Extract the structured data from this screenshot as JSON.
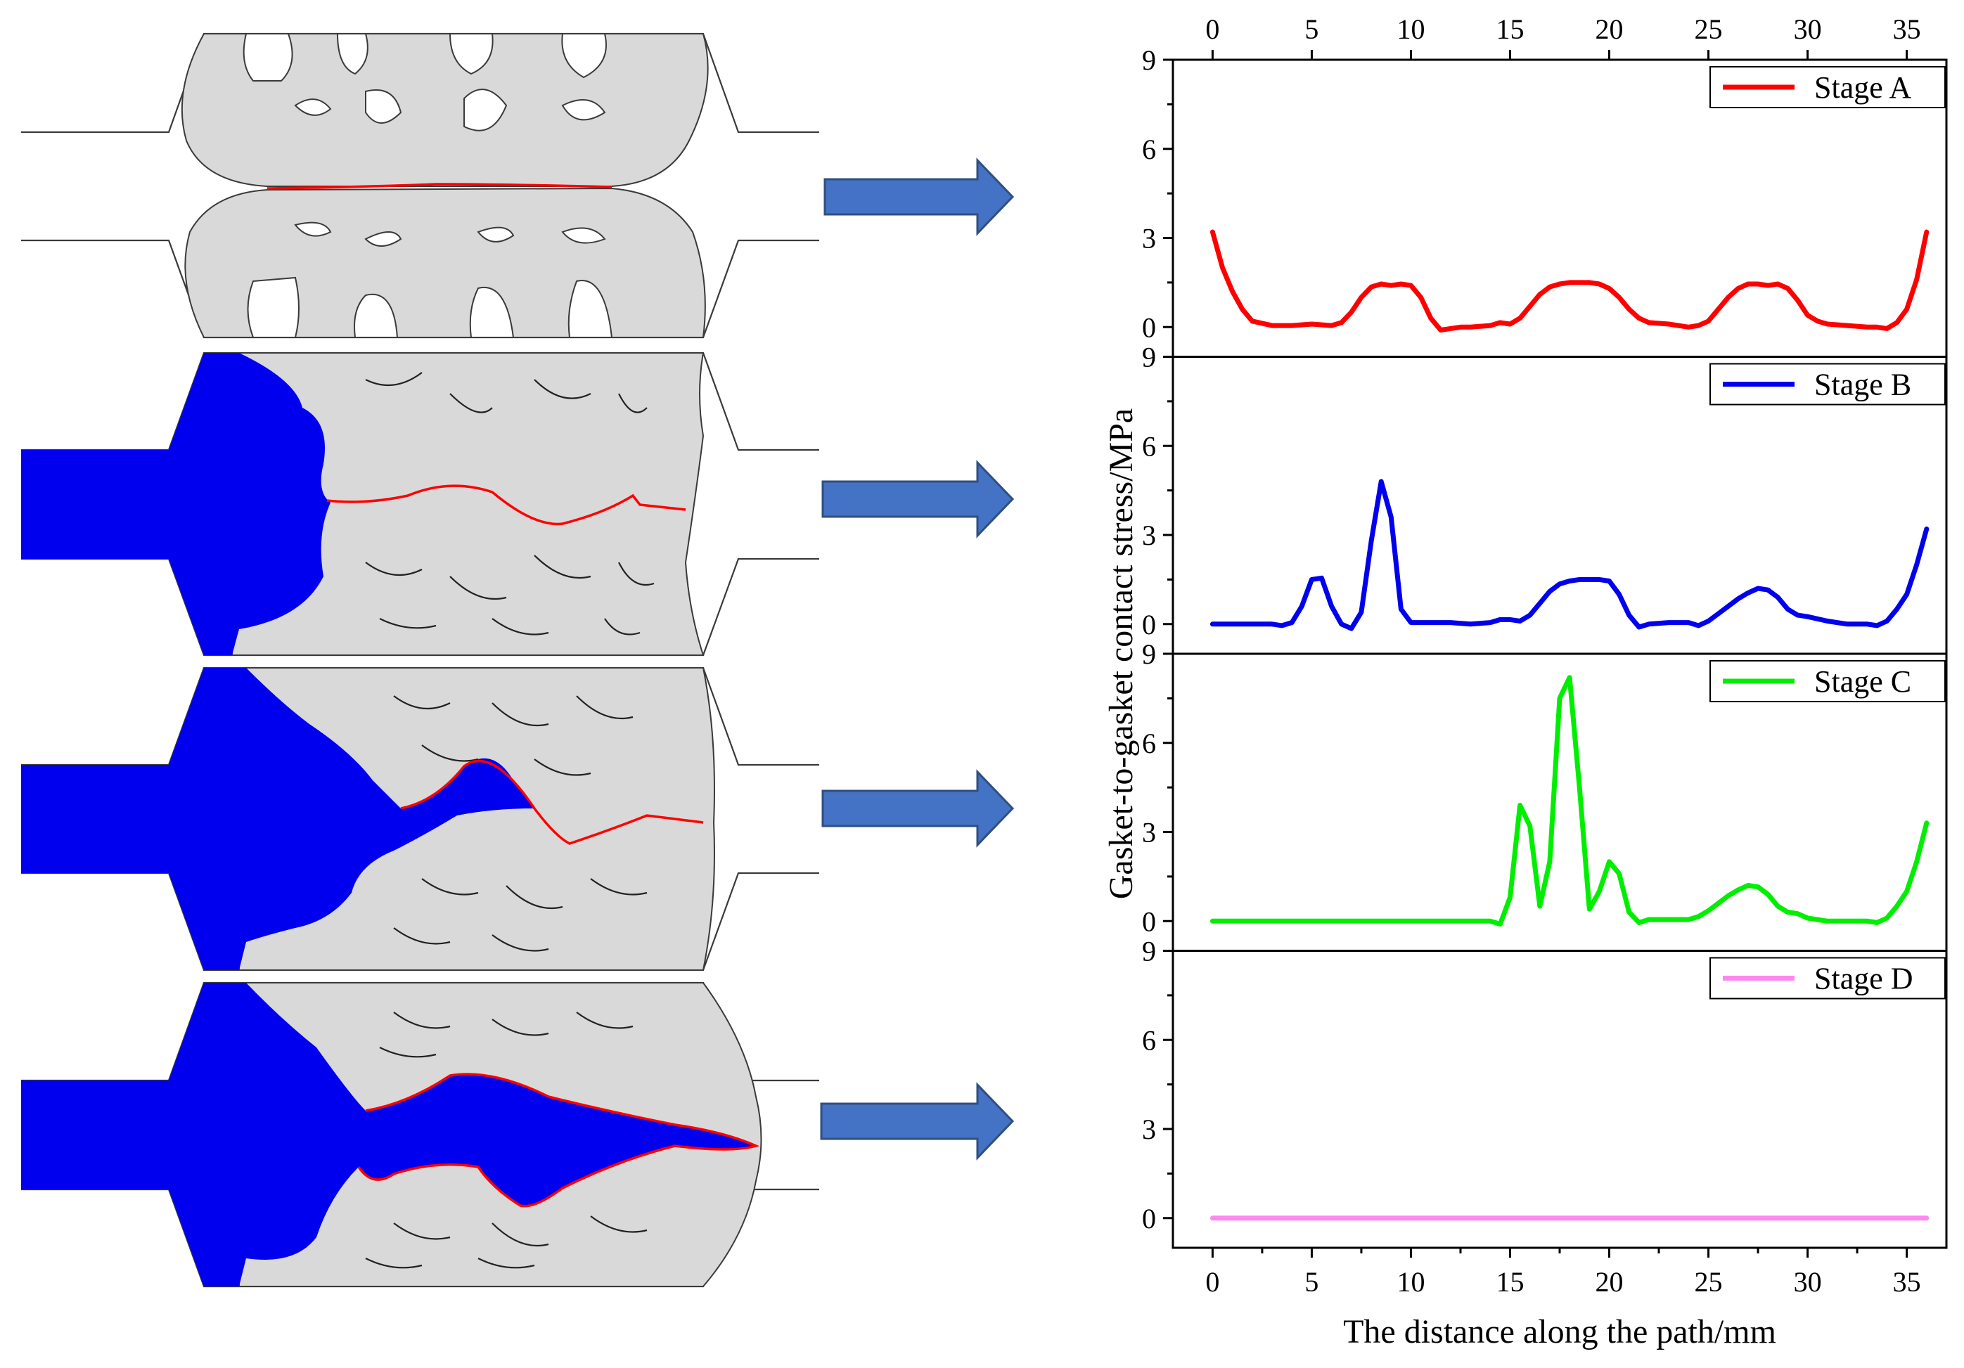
{
  "chart_data": {
    "type": "line",
    "xlabel": "The distance along the path/mm",
    "ylabel": "Gasket-to-gasket contact stress/MPa",
    "xlim": [
      -2,
      37
    ],
    "ylim": [
      -1,
      9
    ],
    "x_ticks": [
      0,
      5,
      10,
      15,
      20,
      25,
      30,
      35
    ],
    "y_ticks": [
      0,
      3,
      6,
      9
    ],
    "series": [
      {
        "name": "Stage A",
        "color": "#ff0000",
        "x": [
          0,
          0.5,
          1,
          1.5,
          2,
          3,
          4,
          5,
          6,
          6.5,
          7,
          7.5,
          8,
          8.5,
          9,
          9.5,
          10,
          10.5,
          11,
          11.5,
          12,
          12.5,
          13,
          14,
          14.5,
          15,
          15.5,
          16,
          16.5,
          17,
          17.5,
          18,
          18.5,
          19,
          19.5,
          20,
          20.5,
          21,
          21.5,
          22,
          23,
          24,
          24.5,
          25,
          25.5,
          26,
          26.5,
          27,
          27.5,
          28,
          28.5,
          29,
          29.5,
          30,
          30.5,
          31,
          32,
          33,
          33.5,
          34,
          34.5,
          35,
          35.5,
          36
        ],
        "y": [
          3.2,
          2.0,
          1.2,
          0.6,
          0.2,
          0.05,
          0.05,
          0.1,
          0.05,
          0.15,
          0.5,
          1.0,
          1.35,
          1.45,
          1.4,
          1.45,
          1.4,
          1.0,
          0.3,
          -0.1,
          -0.05,
          0.0,
          0.0,
          0.05,
          0.15,
          0.1,
          0.3,
          0.7,
          1.1,
          1.35,
          1.45,
          1.5,
          1.5,
          1.5,
          1.45,
          1.3,
          1.0,
          0.6,
          0.3,
          0.15,
          0.1,
          0.0,
          0.05,
          0.2,
          0.6,
          1.0,
          1.3,
          1.45,
          1.45,
          1.4,
          1.45,
          1.3,
          0.9,
          0.4,
          0.2,
          0.1,
          0.05,
          0.0,
          0.0,
          -0.05,
          0.15,
          0.6,
          1.6,
          3.2
        ]
      },
      {
        "name": "Stage B",
        "color": "#0000ee",
        "x": [
          0,
          1,
          2,
          3,
          3.5,
          4,
          4.5,
          5,
          5.5,
          6,
          6.5,
          7,
          7.5,
          8,
          8.5,
          9,
          9.5,
          10,
          11,
          12,
          13,
          14,
          14.5,
          15,
          15.5,
          16,
          16.5,
          17,
          17.5,
          18,
          18.5,
          19,
          19.5,
          20,
          20.5,
          21,
          21.5,
          22,
          23,
          24,
          24.5,
          25,
          25.5,
          26,
          26.5,
          27,
          27.5,
          28,
          28.5,
          29,
          29.5,
          30,
          31,
          32,
          33,
          33.5,
          34,
          34.5,
          35,
          35.5,
          36
        ],
        "y": [
          0,
          0,
          0,
          0,
          -0.05,
          0.05,
          0.6,
          1.5,
          1.55,
          0.6,
          0.0,
          -0.15,
          0.4,
          2.8,
          4.8,
          3.6,
          0.5,
          0.05,
          0.05,
          0.05,
          0.0,
          0.05,
          0.15,
          0.15,
          0.1,
          0.3,
          0.7,
          1.1,
          1.35,
          1.45,
          1.5,
          1.5,
          1.5,
          1.45,
          1.0,
          0.3,
          -0.1,
          0.0,
          0.05,
          0.05,
          -0.05,
          0.1,
          0.35,
          0.6,
          0.85,
          1.05,
          1.2,
          1.15,
          0.9,
          0.5,
          0.3,
          0.25,
          0.1,
          0.0,
          0.0,
          -0.05,
          0.1,
          0.5,
          1.0,
          2.0,
          3.2
        ]
      },
      {
        "name": "Stage C",
        "color": "#00ee00",
        "x": [
          0,
          2,
          4,
          6,
          8,
          10,
          12,
          13,
          14,
          14.5,
          15,
          15.5,
          16,
          16.5,
          17,
          17.5,
          18,
          18.5,
          19,
          19.5,
          20,
          20.5,
          21,
          21.5,
          22,
          23,
          24,
          24.5,
          25,
          25.5,
          26,
          26.5,
          27,
          27.5,
          28,
          28.5,
          29,
          29.5,
          30,
          31,
          32,
          33,
          33.5,
          34,
          34.5,
          35,
          35.5,
          36
        ],
        "y": [
          0,
          0,
          0,
          0,
          0,
          0,
          0,
          0,
          0,
          -0.1,
          0.8,
          3.9,
          3.2,
          0.5,
          2.0,
          7.5,
          8.2,
          4.5,
          0.4,
          1.0,
          2.0,
          1.6,
          0.3,
          -0.05,
          0.05,
          0.05,
          0.05,
          0.15,
          0.35,
          0.6,
          0.85,
          1.05,
          1.2,
          1.15,
          0.9,
          0.5,
          0.3,
          0.25,
          0.1,
          0.0,
          0.0,
          0.0,
          -0.05,
          0.1,
          0.5,
          1.0,
          2.0,
          3.3
        ]
      },
      {
        "name": "Stage D",
        "color": "#ff88ee",
        "x": [
          0,
          36
        ],
        "y": [
          0,
          0
        ]
      }
    ]
  }
}
